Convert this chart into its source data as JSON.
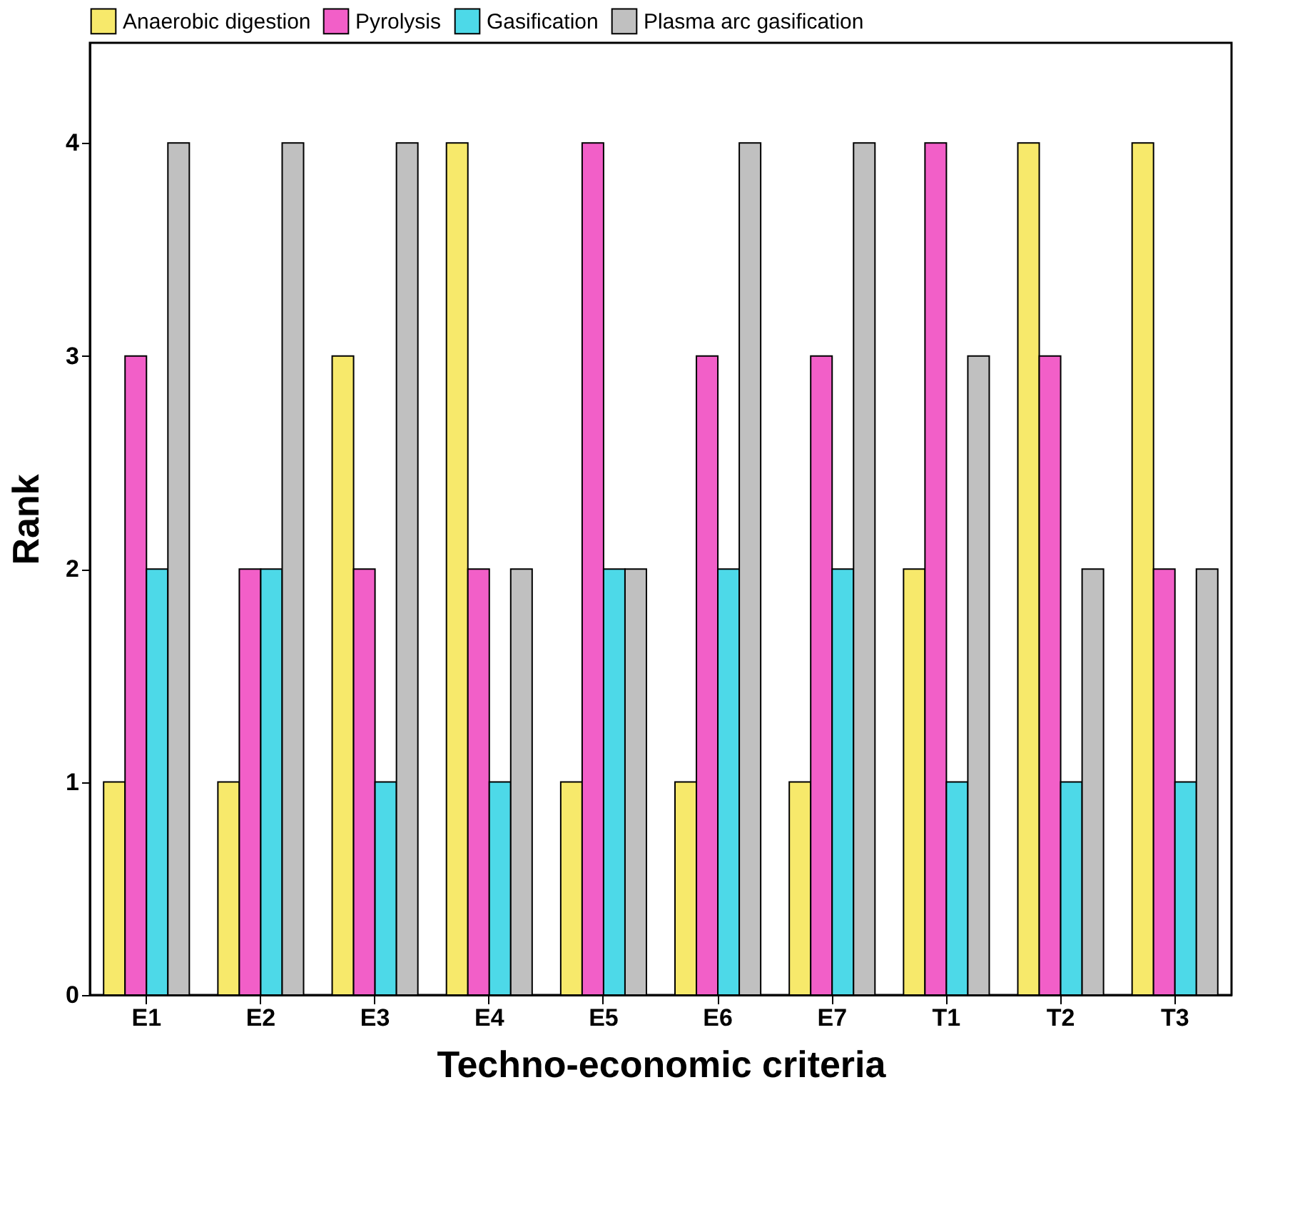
{
  "chart_data": {
    "type": "bar",
    "xlabel": "Techno-economic criteria",
    "ylabel": "Rank",
    "categories": [
      "E1",
      "E2",
      "E3",
      "E4",
      "E5",
      "E6",
      "E7",
      "T1",
      "T2",
      "T3"
    ],
    "series": [
      {
        "name": "Anaerobic digestion",
        "color": "#f7e96b",
        "values": [
          1,
          1,
          3,
          4,
          1,
          1,
          1,
          2,
          4,
          4
        ]
      },
      {
        "name": "Pyrolysis",
        "color": "#f25fc8",
        "values": [
          3,
          2,
          2,
          2,
          4,
          3,
          3,
          4,
          3,
          2
        ]
      },
      {
        "name": "Gasification",
        "color": "#4dd9e8",
        "values": [
          2,
          2,
          1,
          1,
          2,
          2,
          2,
          1,
          1,
          1
        ]
      },
      {
        "name": "Plasma arc gasification",
        "color": "#c0c0c0",
        "values": [
          4,
          4,
          4,
          2,
          2,
          4,
          4,
          3,
          2,
          2
        ]
      }
    ],
    "ylim": [
      0,
      4.47
    ],
    "yticks": [
      0,
      1,
      2,
      3,
      4
    ],
    "grid": false,
    "legend": "top"
  }
}
